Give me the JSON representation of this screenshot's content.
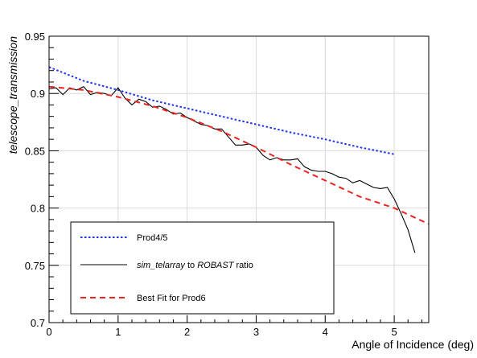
{
  "chart_data": {
    "type": "line",
    "title": "",
    "xlabel": "Angle of Incidence (deg)",
    "ylabel": "telescope_transmission",
    "xlim": [
      0,
      5.5
    ],
    "ylim": [
      0.7,
      0.95
    ],
    "xticks": [
      "0",
      "1",
      "2",
      "3",
      "4",
      "5"
    ],
    "xtick_values": [
      0,
      1,
      2,
      3,
      4,
      5
    ],
    "yticks": [
      "0.7",
      "0.75",
      "0.8",
      "0.85",
      "0.9",
      "0.95"
    ],
    "ytick_values": [
      0.7,
      0.75,
      0.8,
      0.85,
      0.9,
      0.95
    ],
    "grid": true,
    "legend_position": "bottom-left",
    "series": [
      {
        "name": "Prod4/5",
        "color": "#2233ee",
        "style": "dotted",
        "x": [
          0,
          0.5,
          1,
          1.5,
          2,
          2.5,
          3,
          3.5,
          4,
          4.5,
          5
        ],
        "y": [
          0.923,
          0.911,
          0.903,
          0.894,
          0.887,
          0.88,
          0.873,
          0.866,
          0.86,
          0.853,
          0.847
        ]
      },
      {
        "name": "sim_telarray to ROBAST ratio",
        "name_parts": [
          "sim_telarray",
          " to ",
          "ROBAST",
          " ratio"
        ],
        "color": "#000000",
        "style": "solid",
        "x": [
          0,
          0.1,
          0.2,
          0.3,
          0.4,
          0.5,
          0.6,
          0.7,
          0.8,
          0.9,
          1.0,
          1.1,
          1.2,
          1.3,
          1.4,
          1.5,
          1.6,
          1.7,
          1.8,
          1.9,
          2.0,
          2.1,
          2.2,
          2.3,
          2.4,
          2.5,
          2.6,
          2.7,
          2.8,
          2.9,
          3.0,
          3.1,
          3.2,
          3.3,
          3.4,
          3.5,
          3.6,
          3.7,
          3.8,
          3.9,
          4.0,
          4.1,
          4.2,
          4.3,
          4.4,
          4.5,
          4.6,
          4.7,
          4.8,
          4.9,
          5.0,
          5.1,
          5.2,
          5.3
        ],
        "y": [
          0.904,
          0.905,
          0.899,
          0.905,
          0.903,
          0.906,
          0.899,
          0.901,
          0.9,
          0.898,
          0.905,
          0.896,
          0.89,
          0.895,
          0.893,
          0.888,
          0.889,
          0.886,
          0.882,
          0.883,
          0.879,
          0.876,
          0.873,
          0.872,
          0.869,
          0.869,
          0.862,
          0.855,
          0.855,
          0.856,
          0.853,
          0.846,
          0.842,
          0.844,
          0.842,
          0.842,
          0.843,
          0.836,
          0.833,
          0.832,
          0.832,
          0.83,
          0.827,
          0.826,
          0.822,
          0.824,
          0.821,
          0.818,
          0.817,
          0.818,
          0.808,
          0.795,
          0.781,
          0.761
        ]
      },
      {
        "name": "Best Fit for Prod6",
        "color": "#ee2222",
        "style": "dashed",
        "x": [
          0,
          0.5,
          1,
          1.5,
          2,
          2.5,
          3,
          3.5,
          4,
          4.5,
          5,
          5.5
        ],
        "y": [
          0.906,
          0.903,
          0.897,
          0.889,
          0.879,
          0.867,
          0.853,
          0.838,
          0.824,
          0.81,
          0.8,
          0.786
        ]
      }
    ]
  }
}
